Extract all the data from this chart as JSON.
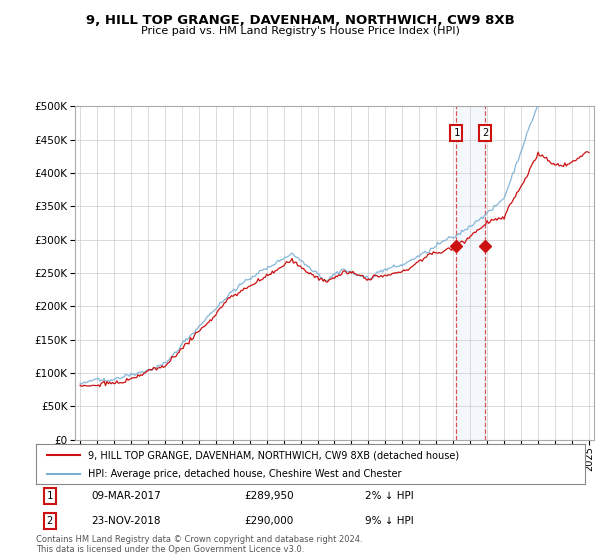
{
  "title": "9, HILL TOP GRANGE, DAVENHAM, NORTHWICH, CW9 8XB",
  "subtitle": "Price paid vs. HM Land Registry's House Price Index (HPI)",
  "legend_line1": "9, HILL TOP GRANGE, DAVENHAM, NORTHWICH, CW9 8XB (detached house)",
  "legend_line2": "HPI: Average price, detached house, Cheshire West and Chester",
  "annotation1_label": "1",
  "annotation1_date": "09-MAR-2017",
  "annotation1_price": "£289,950",
  "annotation1_detail": "2% ↓ HPI",
  "annotation2_label": "2",
  "annotation2_date": "23-NOV-2018",
  "annotation2_price": "£290,000",
  "annotation2_detail": "9% ↓ HPI",
  "footer": "Contains HM Land Registry data © Crown copyright and database right 2024.\nThis data is licensed under the Open Government Licence v3.0.",
  "hpi_color": "#7aafd4",
  "price_color": "#cc1111",
  "bg_color": "#ffffff",
  "plot_bg": "#ffffff",
  "grid_color": "#cccccc",
  "ylim": [
    0,
    500000
  ],
  "yticks": [
    0,
    50000,
    100000,
    150000,
    200000,
    250000,
    300000,
    350000,
    400000,
    450000,
    500000
  ],
  "sale1_year": 2017.19,
  "sale1_value": 289950,
  "sale2_year": 2018.9,
  "sale2_value": 290000
}
